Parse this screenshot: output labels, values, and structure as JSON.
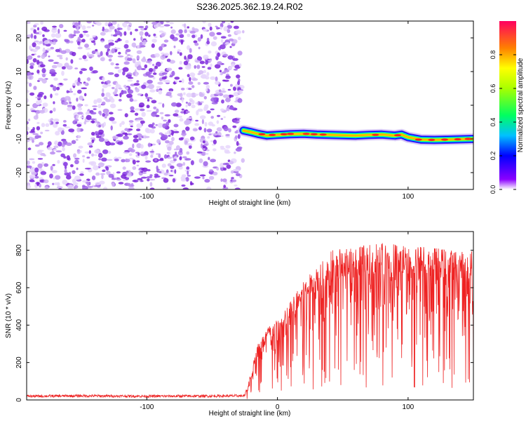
{
  "title": "S236.2025.362.19.24.R02",
  "colors": {
    "snr_line": "#ee2222",
    "scatter_purple": "#8a2be2",
    "axis": "#000000"
  },
  "chart_data": [
    {
      "type": "heatmap",
      "xlabel": "Height of straight line (km)",
      "ylabel": "Frequency (Hz)",
      "xlim": [
        -192,
        150
      ],
      "ylim": [
        -25,
        25
      ],
      "xticks": [
        -100,
        0,
        100
      ],
      "yticks": [
        20,
        10,
        0,
        -10,
        -20
      ],
      "colorbar": {
        "label": "Normalized spectral amplitude",
        "range": [
          0,
          1
        ],
        "ticks": [
          0.0,
          0.2,
          0.4,
          0.6,
          0.8
        ]
      },
      "noise_region_x": [
        -192,
        -28
      ],
      "ridge": {
        "x": [
          -26,
          -20,
          -15,
          -8,
          0,
          10,
          20,
          30,
          40,
          50,
          60,
          70,
          80,
          90,
          95,
          100,
          110,
          120,
          130,
          140,
          150
        ],
        "freq": [
          -7.5,
          -8.0,
          -8.5,
          -9.0,
          -8.8,
          -8.6,
          -8.5,
          -8.7,
          -8.8,
          -8.9,
          -9.0,
          -8.8,
          -8.7,
          -9.0,
          -8.7,
          -9.5,
          -10.2,
          -10.3,
          -10.2,
          -10.1,
          -10.0
        ]
      }
    },
    {
      "type": "line",
      "xlabel": "Height of straight line (km)",
      "ylabel": "SNR (10 * v/v)",
      "xlim": [
        -192,
        150
      ],
      "ylim": [
        0,
        900
      ],
      "xticks": [
        -100,
        0,
        100
      ],
      "yticks": [
        0,
        200,
        400,
        600,
        800
      ],
      "series": [
        {
          "x": [
            -192,
            -150,
            -100,
            -50,
            -25,
            -20,
            -15,
            -10,
            -5,
            0,
            5,
            10,
            20,
            30,
            35,
            40,
            50,
            60,
            70,
            80,
            90,
            100,
            110,
            120,
            130,
            140,
            150
          ],
          "values": [
            20,
            22,
            20,
            21,
            22,
            150,
            300,
            360,
            400,
            420,
            460,
            520,
            620,
            700,
            760,
            780,
            800,
            810,
            820,
            830,
            820,
            820,
            810,
            800,
            790,
            780,
            780
          ]
        }
      ]
    }
  ]
}
